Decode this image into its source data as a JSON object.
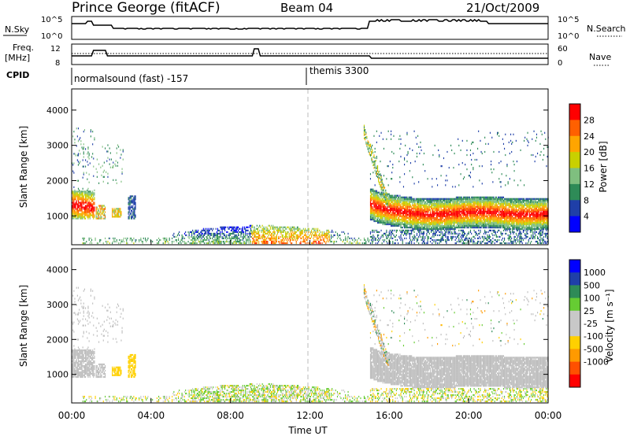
{
  "header": {
    "station": "Prince George (fitACF)",
    "beam": "Beam 04",
    "date": "21/Oct/2009"
  },
  "panel_nsky": {
    "left_label": "N.Sky",
    "right_label": "N.Search",
    "tick_top": "10^5",
    "tick_bottom": "10^0",
    "rtick_top": "10^5",
    "rtick_bottom": "10^0"
  },
  "panel_freq": {
    "left_label_1": "Freq.",
    "left_label_2": "[MHz]",
    "right_label": "Nave",
    "tick_top": "12",
    "tick_bottom": "8",
    "rtick_top": "60",
    "rtick_bottom": "0"
  },
  "cpid": {
    "label": "CPID",
    "mode1": "normalsound (fast) -157",
    "mode2": "themis 3300"
  },
  "colors": {
    "power": [
      "#0000ff",
      "#1f3fa8",
      "#2e8b57",
      "#7fbf7f",
      "#c8d000",
      "#ffa500",
      "#ff6000",
      "#ff0000"
    ],
    "velocity": [
      "#ff0000",
      "#ff5000",
      "#ff9a00",
      "#ffd000",
      "#c8c8c8",
      "#c8c8c8",
      "#66cc33",
      "#2e8b57",
      "#1f3fa8",
      "#0000ff"
    ],
    "ground": "#bebebe"
  },
  "chart_data": [
    {
      "type": "heatmap",
      "name": "power",
      "ylabel": "Slant Range [km]",
      "yticks": [
        "1000",
        "2000",
        "3000",
        "4000"
      ],
      "ylim": [
        180,
        4600
      ],
      "colorbar_label": "Power [dB]",
      "colorbar_ticks": [
        "4",
        "8",
        "12",
        "16",
        "20",
        "24",
        "28"
      ],
      "colorbar_range": [
        0,
        32
      ]
    },
    {
      "type": "heatmap",
      "name": "velocity",
      "ylabel": "Slant Range [km]",
      "yticks": [
        "1000",
        "2000",
        "3000",
        "4000"
      ],
      "ylim": [
        180,
        4600
      ],
      "colorbar_label": "Velocity [m s⁻¹]",
      "colorbar_ticks": [
        "1000",
        "500",
        "100",
        "25",
        "-25",
        "-100",
        "-500",
        "-1000"
      ]
    }
  ],
  "xaxis": {
    "label": "Time UT",
    "ticks": [
      "00:00",
      "04:00",
      "08:00",
      "12:00",
      "16:00",
      "20:00",
      "00:00"
    ],
    "range_hours": [
      0,
      24
    ]
  }
}
